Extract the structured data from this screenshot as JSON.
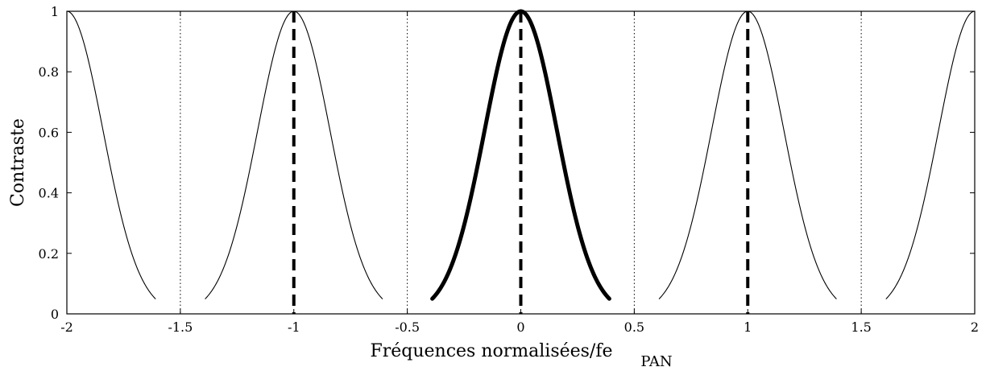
{
  "chart_data": {
    "type": "line",
    "title": "",
    "xlabel": "Fréquences normalisées/fe",
    "xlabel_subscript": "PAN",
    "ylabel": "Contraste",
    "xlim": [
      -2,
      2
    ],
    "ylim": [
      0,
      1
    ],
    "x_ticks": [
      -2,
      -1.5,
      -1,
      -0.5,
      0,
      0.5,
      1,
      1.5,
      2
    ],
    "x_tick_labels": [
      "-2",
      "-1.5",
      "-1",
      "-0.5",
      "0",
      "0.5",
      "1",
      "1.5",
      "2"
    ],
    "y_ticks": [
      0,
      0.2,
      0.4,
      0.6,
      0.8,
      1
    ],
    "y_tick_labels": [
      "0",
      "0.2",
      "0.4",
      "0.6",
      "0.8",
      "1"
    ],
    "grid": false,
    "curves": [
      {
        "center": -2,
        "x_range": [
          -2,
          -1.61
        ],
        "y_at_center": 1,
        "y_at_edge": 0.05,
        "style": "thin"
      },
      {
        "center": -1,
        "x_range": [
          -1.39,
          -0.61
        ],
        "y_at_center": 1,
        "y_at_edge": 0.05,
        "style": "thin"
      },
      {
        "center": 0,
        "x_range": [
          -0.39,
          0.39
        ],
        "y_at_center": 1,
        "y_at_edge": 0.05,
        "style": "thick"
      },
      {
        "center": 1,
        "x_range": [
          0.61,
          1.39
        ],
        "y_at_center": 1,
        "y_at_edge": 0.05,
        "style": "thin"
      },
      {
        "center": 2,
        "x_range": [
          1.61,
          2
        ],
        "y_at_center": 1,
        "y_at_edge": 0.05,
        "style": "thin"
      }
    ],
    "dashed_lines": [
      -1,
      0,
      1
    ],
    "dotted_lines": [
      -1.5,
      -0.5,
      0.5,
      1.5
    ],
    "colors": {
      "line": "#000000",
      "background": "#ffffff"
    }
  }
}
